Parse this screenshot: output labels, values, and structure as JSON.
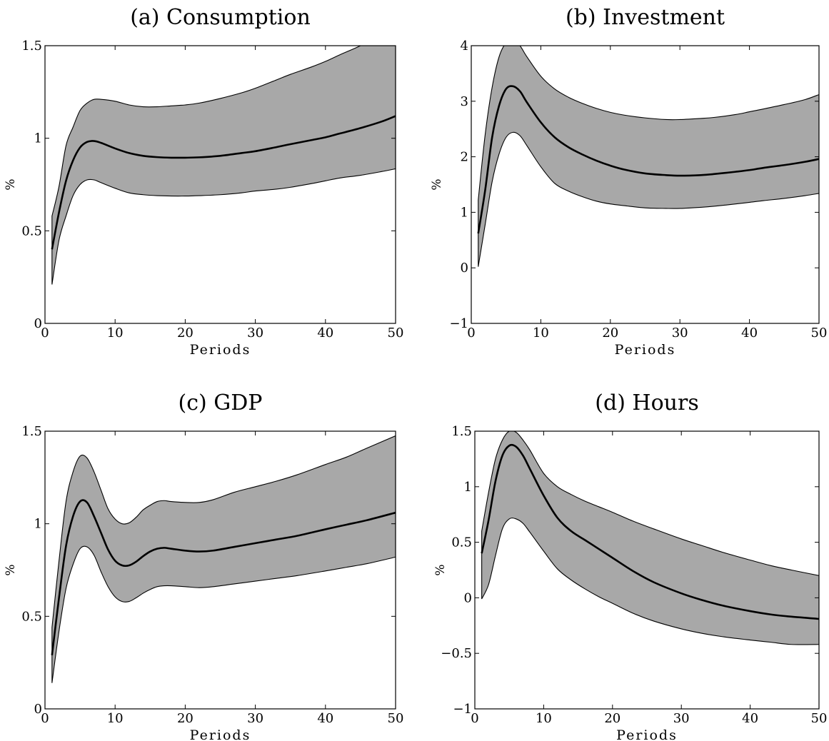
{
  "chart_data": [
    {
      "type": "area",
      "panel": "a",
      "title": "(a) Consumption",
      "xlabel": "Periods",
      "ylabel": "%",
      "xlim": [
        0,
        50
      ],
      "ylim": [
        0,
        1.5
      ],
      "xticks": [
        "0",
        "10",
        "20",
        "30",
        "40",
        "50"
      ],
      "yticks": [
        "0",
        "0.5",
        "1",
        "1.5"
      ],
      "x": [
        1,
        2,
        3,
        4,
        5,
        6,
        7,
        8,
        10,
        12,
        14,
        16,
        18,
        20,
        22,
        25,
        28,
        30,
        33,
        35,
        38,
        40,
        42,
        45,
        48,
        50
      ],
      "series": [
        {
          "role": "upper",
          "values": [
            0.58,
            0.74,
            0.96,
            1.06,
            1.15,
            1.19,
            1.21,
            1.21,
            1.2,
            1.18,
            1.17,
            1.17,
            1.175,
            1.18,
            1.19,
            1.215,
            1.245,
            1.27,
            1.315,
            1.345,
            1.385,
            1.415,
            1.45,
            1.5,
            1.56,
            1.6
          ]
        },
        {
          "role": "median",
          "values": [
            0.4,
            0.6,
            0.77,
            0.88,
            0.95,
            0.98,
            0.985,
            0.975,
            0.945,
            0.92,
            0.905,
            0.898,
            0.895,
            0.895,
            0.897,
            0.905,
            0.92,
            0.93,
            0.952,
            0.968,
            0.99,
            1.005,
            1.025,
            1.055,
            1.09,
            1.12
          ]
        },
        {
          "role": "lower",
          "values": [
            0.21,
            0.45,
            0.58,
            0.69,
            0.75,
            0.775,
            0.775,
            0.76,
            0.73,
            0.705,
            0.695,
            0.69,
            0.688,
            0.688,
            0.69,
            0.695,
            0.705,
            0.715,
            0.725,
            0.735,
            0.755,
            0.77,
            0.785,
            0.8,
            0.82,
            0.835
          ]
        }
      ]
    },
    {
      "type": "area",
      "panel": "b",
      "title": "(b) Investment",
      "xlabel": "Periods",
      "ylabel": "%",
      "xlim": [
        0,
        50
      ],
      "ylim": [
        -1,
        4
      ],
      "xticks": [
        "0",
        "10",
        "20",
        "30",
        "40",
        "50"
      ],
      "yticks": [
        "−1",
        "0",
        "1",
        "2",
        "3",
        "4"
      ],
      "x": [
        1,
        2,
        3,
        4,
        5,
        6,
        7,
        8,
        10,
        12,
        14,
        16,
        18,
        20,
        22,
        25,
        28,
        30,
        33,
        35,
        38,
        40,
        42,
        45,
        48,
        50
      ],
      "series": [
        {
          "role": "upper",
          "values": [
            1.22,
            2.4,
            3.25,
            3.8,
            4.05,
            4.1,
            4.0,
            3.8,
            3.45,
            3.22,
            3.07,
            2.96,
            2.87,
            2.8,
            2.75,
            2.7,
            2.67,
            2.67,
            2.69,
            2.71,
            2.76,
            2.81,
            2.86,
            2.94,
            3.03,
            3.12
          ]
        },
        {
          "role": "median",
          "values": [
            0.62,
            1.4,
            2.35,
            2.92,
            3.22,
            3.27,
            3.18,
            2.98,
            2.62,
            2.35,
            2.17,
            2.04,
            1.93,
            1.84,
            1.77,
            1.7,
            1.67,
            1.66,
            1.67,
            1.69,
            1.73,
            1.76,
            1.8,
            1.85,
            1.91,
            1.96
          ]
        },
        {
          "role": "lower",
          "values": [
            0.02,
            0.78,
            1.55,
            2.05,
            2.35,
            2.44,
            2.38,
            2.2,
            1.82,
            1.52,
            1.38,
            1.28,
            1.2,
            1.15,
            1.12,
            1.08,
            1.07,
            1.07,
            1.09,
            1.11,
            1.15,
            1.18,
            1.21,
            1.25,
            1.3,
            1.34
          ]
        }
      ]
    },
    {
      "type": "area",
      "panel": "c",
      "title": "(c) GDP",
      "xlabel": "Periods",
      "ylabel": "%",
      "xlim": [
        0,
        50
      ],
      "ylim": [
        0,
        1.5
      ],
      "xticks": [
        "0",
        "10",
        "20",
        "30",
        "40",
        "50"
      ],
      "yticks": [
        "0",
        "0.5",
        "1",
        "1.5"
      ],
      "x": [
        1,
        2,
        3,
        4,
        5,
        6,
        7,
        8,
        9,
        10,
        11,
        12,
        13,
        14,
        15,
        16,
        17,
        18,
        20,
        22,
        24,
        27,
        30,
        33,
        36,
        40,
        43,
        46,
        50
      ],
      "series": [
        {
          "role": "upper",
          "values": [
            0.44,
            0.8,
            1.12,
            1.28,
            1.365,
            1.355,
            1.28,
            1.18,
            1.08,
            1.025,
            1.0,
            1.005,
            1.035,
            1.075,
            1.1,
            1.12,
            1.125,
            1.12,
            1.115,
            1.115,
            1.13,
            1.17,
            1.2,
            1.23,
            1.265,
            1.32,
            1.36,
            1.41,
            1.475
          ]
        },
        {
          "role": "median",
          "values": [
            0.29,
            0.6,
            0.88,
            1.04,
            1.12,
            1.115,
            1.04,
            0.95,
            0.86,
            0.8,
            0.775,
            0.775,
            0.795,
            0.825,
            0.85,
            0.865,
            0.87,
            0.865,
            0.855,
            0.85,
            0.855,
            0.875,
            0.895,
            0.915,
            0.935,
            0.97,
            0.995,
            1.02,
            1.06
          ]
        },
        {
          "role": "lower",
          "values": [
            0.14,
            0.42,
            0.65,
            0.78,
            0.865,
            0.875,
            0.83,
            0.74,
            0.66,
            0.605,
            0.58,
            0.58,
            0.6,
            0.625,
            0.645,
            0.66,
            0.665,
            0.665,
            0.66,
            0.655,
            0.66,
            0.675,
            0.69,
            0.705,
            0.72,
            0.745,
            0.765,
            0.785,
            0.82
          ]
        }
      ]
    },
    {
      "type": "area",
      "panel": "d",
      "title": "(d) Hours",
      "xlabel": "Periods",
      "ylabel": "%",
      "xlim": [
        0,
        50
      ],
      "ylim": [
        -1,
        1.5
      ],
      "xticks": [
        "0",
        "10",
        "20",
        "30",
        "40",
        "50"
      ],
      "yticks": [
        "−1",
        "−0.5",
        "0",
        "0.5",
        "1",
        "1.5"
      ],
      "x": [
        1,
        2,
        3,
        4,
        5,
        6,
        7,
        8,
        10,
        12,
        14,
        16,
        18,
        20,
        23,
        26,
        30,
        33,
        36,
        40,
        43,
        46,
        50
      ],
      "series": [
        {
          "role": "upper",
          "values": [
            0.6,
            0.95,
            1.25,
            1.42,
            1.5,
            1.49,
            1.42,
            1.33,
            1.12,
            1.0,
            0.93,
            0.87,
            0.82,
            0.77,
            0.69,
            0.62,
            0.53,
            0.47,
            0.41,
            0.34,
            0.29,
            0.25,
            0.2
          ]
        },
        {
          "role": "median",
          "values": [
            0.4,
            0.7,
            1.05,
            1.28,
            1.37,
            1.36,
            1.28,
            1.16,
            0.92,
            0.72,
            0.6,
            0.52,
            0.44,
            0.36,
            0.24,
            0.14,
            0.04,
            -0.02,
            -0.07,
            -0.12,
            -0.15,
            -0.17,
            -0.19
          ]
        },
        {
          "role": "lower",
          "values": [
            -0.01,
            0.12,
            0.38,
            0.62,
            0.71,
            0.71,
            0.67,
            0.59,
            0.42,
            0.26,
            0.16,
            0.08,
            0.01,
            -0.05,
            -0.14,
            -0.21,
            -0.28,
            -0.32,
            -0.35,
            -0.38,
            -0.4,
            -0.42,
            -0.42
          ]
        }
      ]
    }
  ]
}
